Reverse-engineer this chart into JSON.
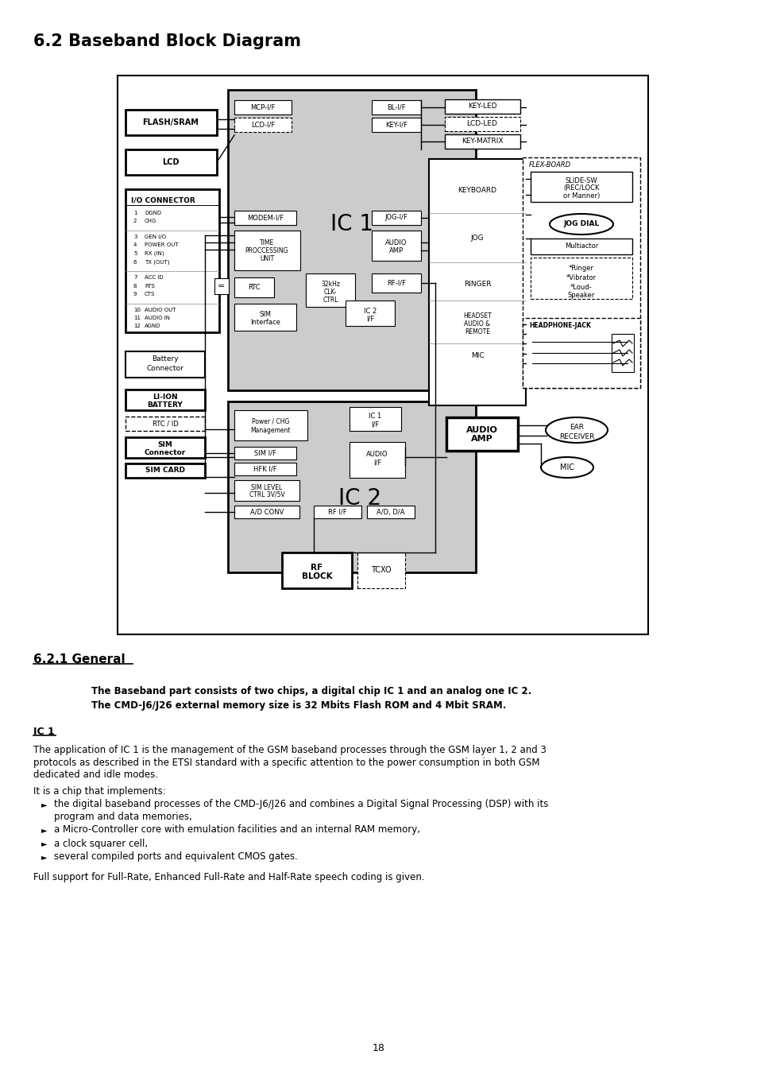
{
  "title": "6.2 Baseband Block Diagram",
  "section_title": "6.2.1 General",
  "bold_para_1": "The Baseband part consists of two chips, a digital chip IC 1 and an analog one IC 2.",
  "bold_para_2": "The CMD-J6/J26 external memory size is 32 Mbits Flash ROM and 4 Mbit SRAM.",
  "ic1_label": "IC 1",
  "ic2_label": "IC 2",
  "underline_label": "IC 1",
  "para1_lines": [
    "The application of IC 1 is the management of the GSM baseband processes through the GSM layer 1, 2 and 3",
    "protocols as described in the ETSI standard with a specific attention to the power consumption in both GSM",
    "dedicated and idle modes."
  ],
  "para2": "It is a chip that implements:",
  "bullets": [
    [
      "the digital baseband processes of the CMD-J6/J26 and combines a Digital Signal Processing (DSP) with its",
      "program and data memories,"
    ],
    [
      "a Micro-Controller core with emulation facilities and an internal RAM memory,"
    ],
    [
      "a clock squarer cell,"
    ],
    [
      "several compiled ports and equivalent CMOS gates."
    ]
  ],
  "para3": "Full support for Full-Rate, Enhanced Full-Rate and Half-Rate speech coding is given.",
  "page_num": "18",
  "bg_color": "#ffffff",
  "box_bg": "#cccccc",
  "diagram_border": "#000000"
}
